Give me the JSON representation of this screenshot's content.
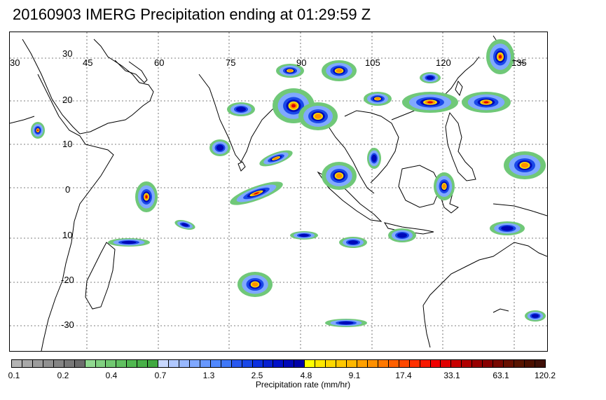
{
  "title": "20160903 IMERG Precipitation ending at 01:29:59 Z",
  "map": {
    "lon_labels": [
      "30",
      "45",
      "60",
      "75",
      "90",
      "105",
      "120",
      "135"
    ],
    "lat_labels": [
      "30",
      "20",
      "10",
      "0",
      "10",
      "-20",
      "-30"
    ],
    "lon_range": [
      30,
      145
    ],
    "lat_range": [
      -37,
      37
    ],
    "grid": "dotted, every 15° longitude and 10° latitude"
  },
  "colorbar": {
    "label": "Precipitation rate (mm/hr)",
    "tick_labels": [
      "0.1",
      "0.2",
      "0.4",
      "0.7",
      "1.3",
      "2.5",
      "4.8",
      "9.1",
      "17.4",
      "33.1",
      "63.1",
      "120.2"
    ],
    "colors": [
      "#b4b4b4",
      "#a8a8a8",
      "#9c9c9c",
      "#909090",
      "#848484",
      "#787878",
      "#6c6c6c",
      "#90d890",
      "#80d080",
      "#70c870",
      "#60c060",
      "#50b850",
      "#48b048",
      "#40a840",
      "#c8d8ff",
      "#b0c8ff",
      "#98b8ff",
      "#80a8ff",
      "#6898ff",
      "#5088ff",
      "#4078f8",
      "#2858f0",
      "#1a48e8",
      "#0c30e0",
      "#0820d0",
      "#0010c8",
      "#0008b8",
      "#0000a8",
      "#ffff00",
      "#ffe800",
      "#ffd800",
      "#ffc800",
      "#ffb800",
      "#ffa000",
      "#ff9000",
      "#ff7800",
      "#ff6000",
      "#ff4800",
      "#ff3000",
      "#f81800",
      "#f00000",
      "#e00000",
      "#c80000",
      "#b00000",
      "#980000",
      "#880000",
      "#780800",
      "#681000",
      "#581400",
      "#4c1000",
      "#401008"
    ]
  },
  "precip_palette": {
    "gray": "#9c9c9c",
    "green": "#70c878",
    "light_blue": "#80a8ff",
    "blue": "#1a48e8",
    "dark_blue": "#0008b8",
    "yellow": "#ffe000",
    "orange": "#ff9000",
    "red": "#e00000",
    "dark_red": "#800000"
  }
}
